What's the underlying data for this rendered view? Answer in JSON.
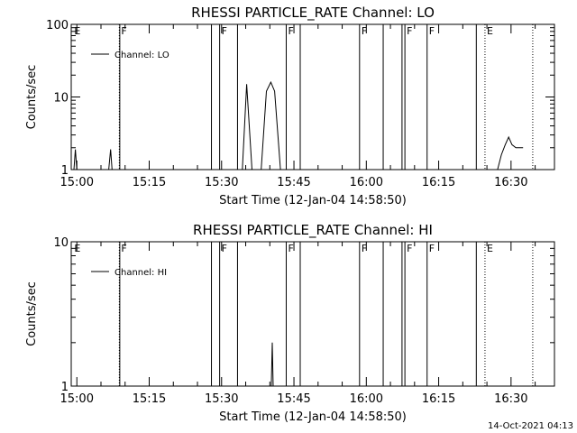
{
  "footer": {
    "timestamp": "14-Oct-2021 04:13"
  },
  "chart_data": [
    {
      "type": "line",
      "title": "RHESSI PARTICLE_RATE Channel: LO",
      "xlabel": "Start Time (12-Jan-04 14:58:50)",
      "ylabel": "Counts/sec",
      "yscale": "log",
      "ylim": [
        1,
        100
      ],
      "xlim_minutes": [
        -1.1667,
        99.0
      ],
      "yticks": [
        {
          "value": 1,
          "label": "1"
        },
        {
          "value": 10,
          "label": "10"
        },
        {
          "value": 100,
          "label": "100"
        }
      ],
      "xticks": [
        {
          "value": 0,
          "label": "15:00"
        },
        {
          "value": 15,
          "label": "15:15"
        },
        {
          "value": 30,
          "label": "15:30"
        },
        {
          "value": 45,
          "label": "15:45"
        },
        {
          "value": 60,
          "label": "16:00"
        },
        {
          "value": 75,
          "label": "16:15"
        },
        {
          "value": 90,
          "label": "16:30"
        }
      ],
      "legend": {
        "entry": "Channel: LO",
        "position": "top-left"
      },
      "series": [
        {
          "name": "Channel: LO",
          "segments": [
            [
              [
                -0.6,
                1
              ],
              [
                -0.3,
                1.9
              ],
              [
                0.0,
                1
              ],
              [
                0.3,
                1
              ]
            ],
            [
              [
                6.6,
                1
              ],
              [
                7.0,
                1.9
              ],
              [
                7.3,
                1
              ]
            ],
            [
              [
                29.8,
                1
              ],
              [
                30.2,
                1
              ]
            ],
            [
              [
                34.3,
                1
              ],
              [
                35.2,
                15
              ],
              [
                36.3,
                1
              ]
            ],
            [
              [
                38.2,
                1
              ],
              [
                39.3,
                12
              ],
              [
                40.2,
                16
              ],
              [
                41.0,
                12
              ],
              [
                42.2,
                1
              ]
            ],
            [
              [
                87.2,
                1
              ],
              [
                88.0,
                1.6
              ],
              [
                88.8,
                2.2
              ],
              [
                89.5,
                2.8
              ],
              [
                90.2,
                2.2
              ],
              [
                91.0,
                2.0
              ],
              [
                92.5,
                2.0
              ]
            ]
          ]
        }
      ],
      "flags": [
        {
          "label": "E",
          "x": -0.9,
          "style": "none"
        },
        {
          "label": "F",
          "x": 8.8,
          "style": "dotted"
        },
        {
          "label": "",
          "x": 8.9,
          "style": "solid"
        },
        {
          "label": "",
          "x": 27.9,
          "style": "solid"
        },
        {
          "label": "F",
          "x": 29.6,
          "style": "solid"
        },
        {
          "label": "",
          "x": 33.3,
          "style": "solid"
        },
        {
          "label": "F",
          "x": 43.4,
          "style": "solid"
        },
        {
          "label": "",
          "x": 46.3,
          "style": "solid"
        },
        {
          "label": "F",
          "x": 58.6,
          "style": "solid"
        },
        {
          "label": "",
          "x": 63.5,
          "style": "solid"
        },
        {
          "label": "",
          "x": 67.4,
          "style": "solid"
        },
        {
          "label": "F",
          "x": 68.0,
          "style": "solid"
        },
        {
          "label": "F",
          "x": 72.6,
          "style": "solid"
        },
        {
          "label": "",
          "x": 82.8,
          "style": "solid"
        },
        {
          "label": "E",
          "x": 84.6,
          "style": "dotted"
        },
        {
          "label": "",
          "x": 94.5,
          "style": "dotted"
        }
      ]
    },
    {
      "type": "line",
      "title": "RHESSI PARTICLE_RATE Channel: HI",
      "xlabel": "Start Time (12-Jan-04 14:58:50)",
      "ylabel": "Counts/sec",
      "yscale": "log",
      "ylim": [
        1,
        10
      ],
      "xlim_minutes": [
        -1.1667,
        99.0
      ],
      "yticks": [
        {
          "value": 1,
          "label": "1"
        },
        {
          "value": 10,
          "label": "10"
        }
      ],
      "xticks": [
        {
          "value": 0,
          "label": "15:00"
        },
        {
          "value": 15,
          "label": "15:15"
        },
        {
          "value": 30,
          "label": "15:30"
        },
        {
          "value": 45,
          "label": "15:45"
        },
        {
          "value": 60,
          "label": "16:00"
        },
        {
          "value": 75,
          "label": "16:15"
        },
        {
          "value": 90,
          "label": "16:30"
        }
      ],
      "legend": {
        "entry": "Channel: HI",
        "position": "top-left"
      },
      "series": [
        {
          "name": "Channel: HI",
          "segments": [
            [
              [
                40.3,
                1
              ],
              [
                40.5,
                2.0
              ],
              [
                40.7,
                1
              ]
            ]
          ]
        }
      ],
      "flags": [
        {
          "label": "E",
          "x": -0.9,
          "style": "none"
        },
        {
          "label": "F",
          "x": 8.8,
          "style": "dotted"
        },
        {
          "label": "",
          "x": 8.9,
          "style": "solid"
        },
        {
          "label": "",
          "x": 27.9,
          "style": "solid"
        },
        {
          "label": "F",
          "x": 29.6,
          "style": "solid"
        },
        {
          "label": "",
          "x": 33.3,
          "style": "solid"
        },
        {
          "label": "F",
          "x": 43.4,
          "style": "solid"
        },
        {
          "label": "",
          "x": 46.3,
          "style": "solid"
        },
        {
          "label": "F",
          "x": 58.6,
          "style": "solid"
        },
        {
          "label": "",
          "x": 63.5,
          "style": "solid"
        },
        {
          "label": "",
          "x": 67.4,
          "style": "solid"
        },
        {
          "label": "F",
          "x": 68.0,
          "style": "solid"
        },
        {
          "label": "F",
          "x": 72.6,
          "style": "solid"
        },
        {
          "label": "",
          "x": 82.8,
          "style": "solid"
        },
        {
          "label": "E",
          "x": 84.6,
          "style": "dotted"
        },
        {
          "label": "",
          "x": 94.5,
          "style": "dotted"
        }
      ]
    }
  ]
}
